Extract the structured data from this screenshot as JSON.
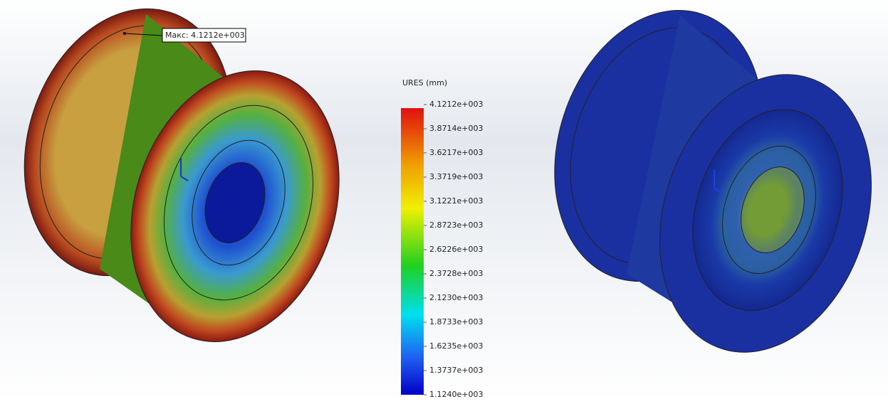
{
  "annotation": "Макс: 4.1212e+003",
  "legend": {
    "title": "URES (mm)",
    "labels": [
      "4.1212e+003",
      "3.8714e+003",
      "3.6217e+003",
      "3.3719e+003",
      "3.1221e+003",
      "2.8723e+003",
      "2.6226e+003",
      "2.3728e+003",
      "2.1230e+003",
      "1.8733e+003",
      "1.6235e+003",
      "1.3737e+003",
      "1.1240e+003"
    ]
  }
}
